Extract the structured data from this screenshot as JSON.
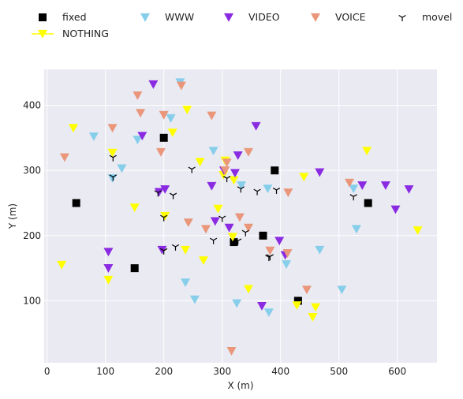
{
  "chart_data": {
    "type": "scatter",
    "xlabel": "X (m)",
    "ylabel": "Y (m)",
    "xlim": [
      -5,
      668
    ],
    "ylim": [
      5,
      455
    ],
    "xticks": [
      0,
      100,
      200,
      300,
      400,
      500,
      600
    ],
    "yticks": [
      100,
      200,
      300,
      400
    ],
    "grid": true,
    "legend_position": "top",
    "series": [
      {
        "name": "fixed",
        "marker": "square",
        "color": "#000000",
        "points": [
          [
            50,
            250
          ],
          [
            200,
            350
          ],
          [
            390,
            300
          ],
          [
            550,
            250
          ],
          [
            150,
            150
          ],
          [
            320,
            190
          ],
          [
            370,
            200
          ],
          [
            430,
            100
          ]
        ]
      },
      {
        "name": "NOTHING",
        "marker": "triangle-down-line",
        "color": "#ffff00",
        "points": [
          [
            45,
            365
          ],
          [
            112,
            327
          ],
          [
            215,
            358
          ],
          [
            240,
            393
          ],
          [
            262,
            313
          ],
          [
            305,
            315
          ],
          [
            320,
            285
          ],
          [
            302,
            293
          ],
          [
            440,
            290
          ],
          [
            548,
            330
          ],
          [
            150,
            243
          ],
          [
            202,
            230
          ],
          [
            293,
            241
          ],
          [
            318,
            198
          ],
          [
            237,
            178
          ],
          [
            268,
            162
          ],
          [
            25,
            155
          ],
          [
            105,
            132
          ],
          [
            345,
            118
          ],
          [
            428,
            93
          ],
          [
            455,
            75
          ],
          [
            460,
            90
          ],
          [
            635,
            208
          ]
        ]
      },
      {
        "name": "WWW",
        "marker": "triangle-down",
        "color": "#87ceeb",
        "points": [
          [
            80,
            352
          ],
          [
            112,
            288
          ],
          [
            128,
            303
          ],
          [
            155,
            347
          ],
          [
            212,
            380
          ],
          [
            228,
            435
          ],
          [
            285,
            330
          ],
          [
            333,
            277
          ],
          [
            378,
            272
          ],
          [
            525,
            272
          ],
          [
            530,
            210
          ],
          [
            467,
            178
          ],
          [
            410,
            156
          ],
          [
            505,
            117
          ],
          [
            237,
            128
          ],
          [
            253,
            102
          ],
          [
            325,
            96
          ],
          [
            380,
            82
          ]
        ]
      },
      {
        "name": "VIDEO",
        "marker": "triangle-down",
        "color": "#8a2be2",
        "points": [
          [
            182,
            432
          ],
          [
            163,
            353
          ],
          [
            358,
            368
          ],
          [
            303,
            300
          ],
          [
            322,
            296
          ],
          [
            327,
            323
          ],
          [
            282,
            276
          ],
          [
            192,
            267
          ],
          [
            202,
            271
          ],
          [
            288,
            222
          ],
          [
            312,
            212
          ],
          [
            398,
            192
          ],
          [
            105,
            175
          ],
          [
            105,
            150
          ],
          [
            197,
            178
          ],
          [
            408,
            170
          ],
          [
            368,
            92
          ],
          [
            467,
            297
          ],
          [
            540,
            277
          ],
          [
            580,
            277
          ],
          [
            620,
            271
          ],
          [
            597,
            240
          ]
        ]
      },
      {
        "name": "VOICE",
        "marker": "triangle-down",
        "color": "#e9967a",
        "points": [
          [
            30,
            320
          ],
          [
            112,
            365
          ],
          [
            155,
            415
          ],
          [
            160,
            388
          ],
          [
            200,
            385
          ],
          [
            230,
            430
          ],
          [
            195,
            328
          ],
          [
            282,
            384
          ],
          [
            345,
            328
          ],
          [
            305,
            300
          ],
          [
            308,
            312
          ],
          [
            413,
            266
          ],
          [
            330,
            228
          ],
          [
            242,
            220
          ],
          [
            272,
            210
          ],
          [
            345,
            212
          ],
          [
            382,
            177
          ],
          [
            412,
            173
          ],
          [
            445,
            117
          ],
          [
            316,
            23
          ],
          [
            518,
            281
          ]
        ]
      },
      {
        "name": "movel",
        "marker": "tri-down",
        "color": "#000000",
        "points": [
          [
            113,
            320
          ],
          [
            113,
            290
          ],
          [
            190,
            266
          ],
          [
            216,
            262
          ],
          [
            248,
            302
          ],
          [
            308,
            288
          ],
          [
            332,
            272
          ],
          [
            360,
            268
          ],
          [
            393,
            270
          ],
          [
            525,
            260
          ],
          [
            200,
            228
          ],
          [
            220,
            183
          ],
          [
            285,
            193
          ],
          [
            300,
            227
          ],
          [
            340,
            205
          ],
          [
            370,
            202
          ],
          [
            382,
            168
          ],
          [
            200,
            177
          ],
          [
            327,
            192
          ],
          [
            380,
            167
          ]
        ]
      }
    ]
  }
}
